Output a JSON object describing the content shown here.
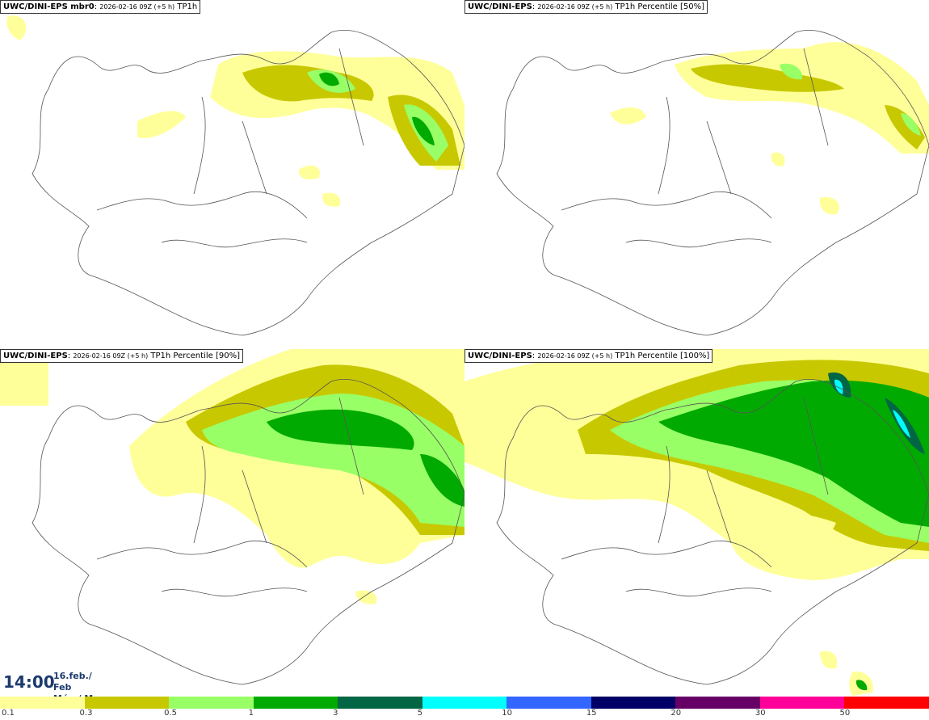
{
  "panels": [
    {
      "model": "UWC/DINI-EPS mbr0",
      "run": "2026-02-16 09Z (+5 h)",
      "field": "TP1h"
    },
    {
      "model": "UWC/DINI-EPS",
      "run": "2026-02-16 09Z (+5 h)",
      "field": "TP1h Percentile [50%]"
    },
    {
      "model": "UWC/DINI-EPS",
      "run": "2026-02-16 09Z (+5 h)",
      "field": "TP1h Percentile [90%]"
    },
    {
      "model": "UWC/DINI-EPS",
      "run": "2026-02-16 09Z (+5 h)",
      "field": "TP1h Percentile [100%]"
    }
  ],
  "valid_time": {
    "time": "14:00",
    "date": "16.feb./ Feb",
    "day": "Mán./ Mon"
  },
  "legend": {
    "colors": [
      "#ffff99",
      "#c8c800",
      "#99ff66",
      "#00aa00",
      "#006644",
      "#00ffff",
      "#3366ff",
      "#000066",
      "#660066",
      "#ff0099",
      "#ff0000"
    ],
    "labels": [
      "0.1",
      "0.3",
      "0.5",
      "1",
      "3",
      "5",
      "10",
      "15",
      "20",
      "30",
      "50"
    ]
  },
  "colors": {
    "land_outline": "#555555",
    "title_text": "#1c3a6e"
  }
}
